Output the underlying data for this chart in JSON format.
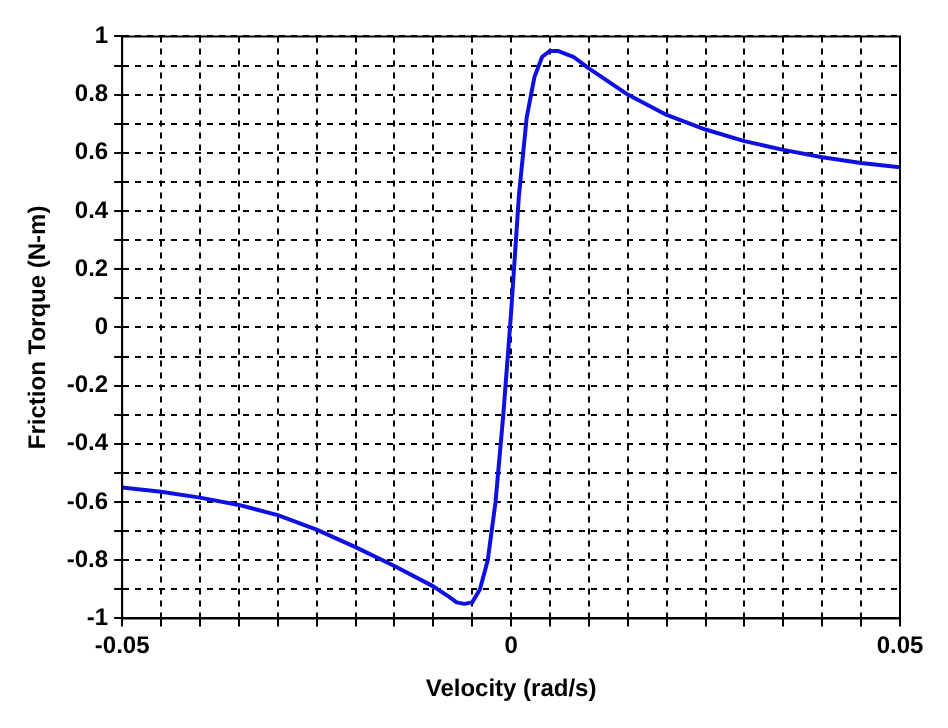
{
  "chart_data": {
    "type": "line",
    "xlabel": "Velocity (rad/s)",
    "ylabel": "Friction Torque (N-m)",
    "xlim": [
      -0.05,
      0.05
    ],
    "xticks": [
      -0.05,
      {
        "value": -0.045,
        "label": null
      },
      {
        "value": -0.04,
        "label": null
      },
      {
        "value": -0.035,
        "label": null
      },
      {
        "value": -0.03,
        "label": null
      },
      {
        "value": -0.025,
        "label": null
      },
      {
        "value": -0.02,
        "label": null
      },
      {
        "value": -0.015,
        "label": null
      },
      {
        "value": -0.01,
        "label": null
      },
      {
        "value": -0.005,
        "label": null
      },
      0,
      {
        "value": 0.005,
        "label": null
      },
      {
        "value": 0.01,
        "label": null
      },
      {
        "value": 0.015,
        "label": null
      },
      {
        "value": 0.02,
        "label": null
      },
      {
        "value": 0.025,
        "label": null
      },
      {
        "value": 0.03,
        "label": null
      },
      {
        "value": 0.035,
        "label": null
      },
      {
        "value": 0.04,
        "label": null
      },
      {
        "value": 0.045,
        "label": null
      },
      0.05
    ],
    "ylim": [
      -1,
      1
    ],
    "yticks": [
      -1,
      {
        "value": -0.9,
        "label": null
      },
      -0.8,
      {
        "value": -0.7,
        "label": null
      },
      -0.6,
      {
        "value": -0.5,
        "label": null
      },
      -0.4,
      {
        "value": -0.3,
        "label": null
      },
      -0.2,
      {
        "value": -0.1,
        "label": null
      },
      0,
      {
        "value": 0.1,
        "label": null
      },
      0.2,
      {
        "value": 0.3,
        "label": null
      },
      0.4,
      {
        "value": 0.5,
        "label": null
      },
      0.6,
      {
        "value": 0.7,
        "label": null
      },
      0.8,
      {
        "value": 0.9,
        "label": null
      },
      1
    ],
    "grid": true,
    "legend": false,
    "marker": "none",
    "series": [
      {
        "color": "#1010e0",
        "x": [
          -0.05,
          -0.045,
          -0.04,
          -0.035,
          -0.03,
          -0.025,
          -0.02,
          -0.015,
          -0.01,
          -0.008,
          -0.007,
          -0.006,
          -0.005,
          -0.004,
          -0.003,
          -0.002,
          -0.001,
          0,
          0.001,
          0.002,
          0.003,
          0.004,
          0.005,
          0.006,
          0.008,
          0.01,
          0.015,
          0.02,
          0.025,
          0.03,
          0.035,
          0.04,
          0.045,
          0.05
        ],
        "values": [
          -0.55,
          -0.565,
          -0.585,
          -0.61,
          -0.645,
          -0.695,
          -0.755,
          -0.82,
          -0.89,
          -0.925,
          -0.945,
          -0.95,
          -0.945,
          -0.9,
          -0.8,
          -0.6,
          -0.3,
          0.05,
          0.45,
          0.72,
          0.86,
          0.93,
          0.95,
          0.95,
          0.93,
          0.89,
          0.8,
          0.73,
          0.68,
          0.64,
          0.61,
          0.585,
          0.565,
          0.55
        ]
      }
    ]
  }
}
